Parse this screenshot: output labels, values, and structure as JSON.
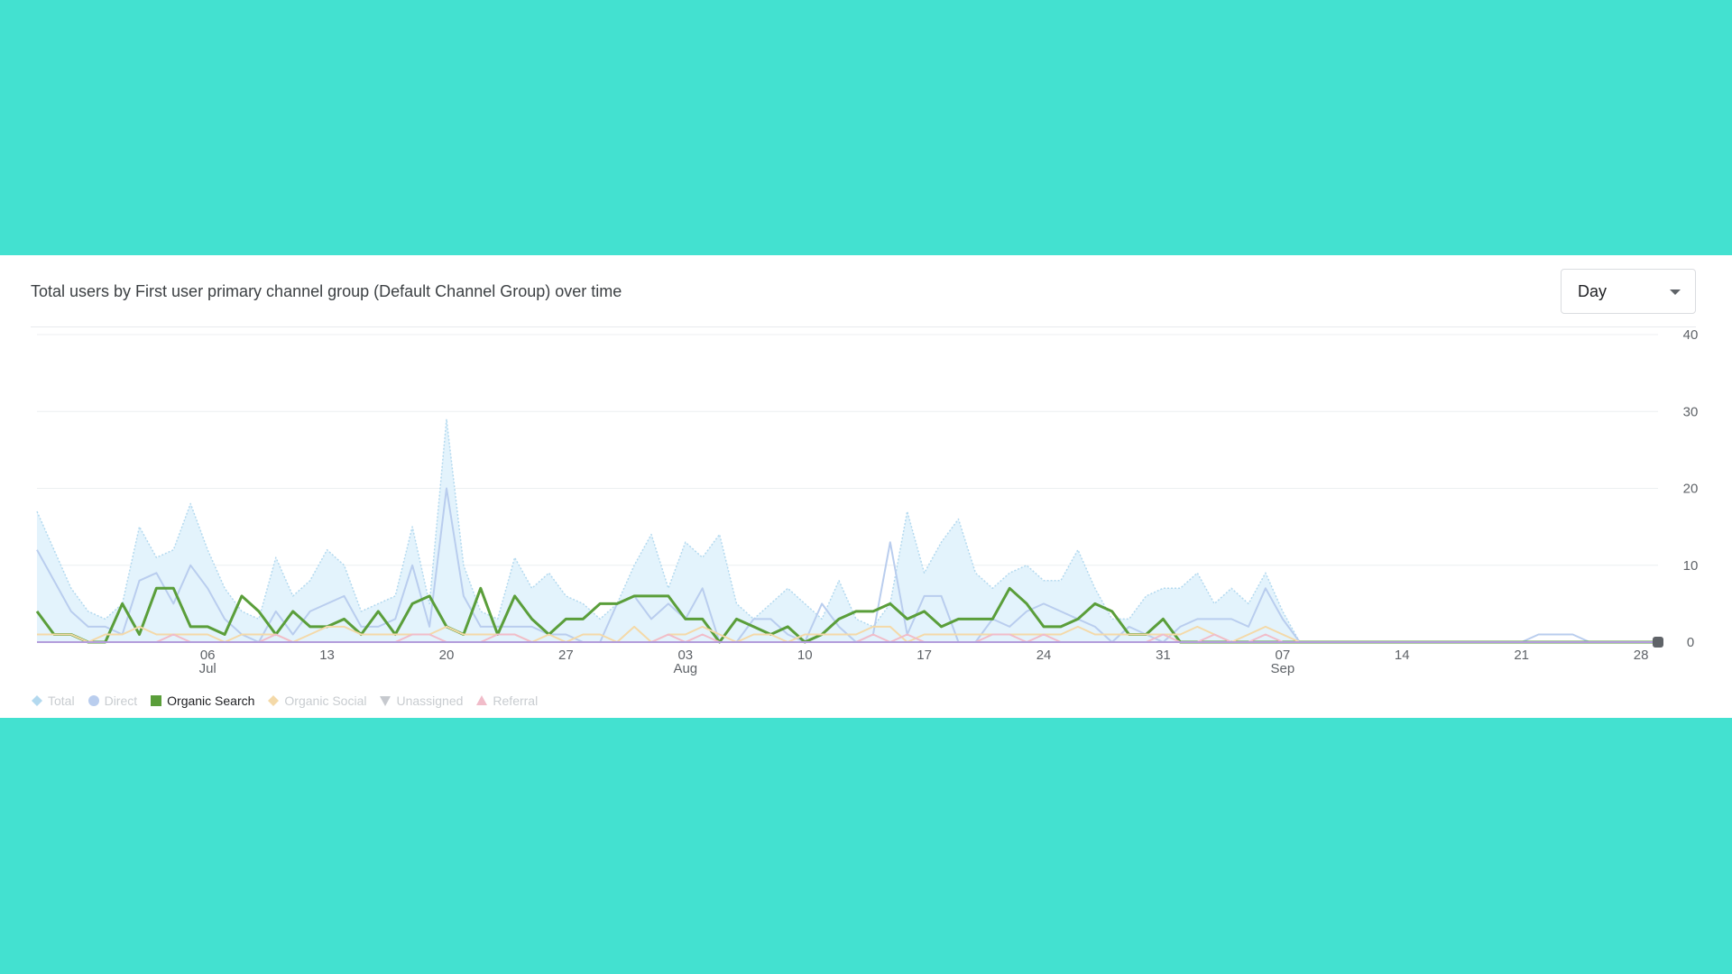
{
  "card": {
    "title": "Total users by First user primary channel group (Default Channel Group) over time",
    "granularity": {
      "selected": "Day"
    }
  },
  "legend": [
    {
      "label": "Total",
      "color": "#b3d9ef",
      "shape": "diamond",
      "active": false
    },
    {
      "label": "Direct",
      "color": "#b9cdee",
      "shape": "circle",
      "active": false
    },
    {
      "label": "Organic Search",
      "color": "#5a9e3a",
      "shape": "square",
      "active": true
    },
    {
      "label": "Organic Social",
      "color": "#f4d9a8",
      "shape": "diamond",
      "active": false
    },
    {
      "label": "Unassigned",
      "color": "#c6c9ce",
      "shape": "triangle-down",
      "active": false
    },
    {
      "label": "Referral",
      "color": "#f1bcc9",
      "shape": "triangle-up",
      "active": false
    }
  ],
  "chart_data": {
    "type": "line",
    "x_start_day": 0,
    "y_axis_side": "right",
    "ylim": [
      0,
      40
    ],
    "y_ticks": [
      0,
      10,
      20,
      30,
      40
    ],
    "x_ticks": [
      {
        "day": 10,
        "label": "06",
        "sub": "Jul"
      },
      {
        "day": 17,
        "label": "13",
        "sub": ""
      },
      {
        "day": 24,
        "label": "20",
        "sub": ""
      },
      {
        "day": 31,
        "label": "27",
        "sub": ""
      },
      {
        "day": 38,
        "label": "03",
        "sub": "Aug"
      },
      {
        "day": 45,
        "label": "10",
        "sub": ""
      },
      {
        "day": 52,
        "label": "17",
        "sub": ""
      },
      {
        "day": 59,
        "label": "24",
        "sub": ""
      },
      {
        "day": 66,
        "label": "31",
        "sub": ""
      },
      {
        "day": 73,
        "label": "07",
        "sub": "Sep"
      },
      {
        "day": 80,
        "label": "14",
        "sub": ""
      },
      {
        "day": 87,
        "label": "21",
        "sub": ""
      },
      {
        "day": 94,
        "label": "28",
        "sub": ""
      }
    ],
    "series": [
      {
        "name": "Total",
        "color": "#b3d9ef",
        "fill": true,
        "dashed": true,
        "values": [
          17,
          12,
          7,
          4,
          3,
          5,
          15,
          11,
          12,
          18,
          12,
          7,
          4,
          3,
          11,
          6,
          8,
          12,
          10,
          4,
          5,
          6,
          15,
          5,
          29,
          10,
          4,
          3,
          11,
          7,
          9,
          6,
          5,
          3,
          5,
          10,
          14,
          7,
          13,
          11,
          14,
          5,
          3,
          5,
          7,
          5,
          3,
          8,
          3,
          2,
          5,
          17,
          9,
          13,
          16,
          9,
          7,
          9,
          10,
          8,
          8,
          12,
          7,
          3,
          3,
          6,
          7,
          7,
          9,
          5,
          7,
          5,
          9,
          4,
          0,
          0,
          0,
          0,
          0,
          0,
          0,
          0,
          0,
          0,
          0,
          0,
          0,
          0,
          0,
          0,
          0,
          0,
          0,
          0,
          0,
          0,
          0,
          0,
          0,
          0,
          0,
          0,
          0,
          0,
          0,
          0,
          0,
          0,
          0,
          0,
          0,
          0,
          0,
          0,
          0,
          0,
          0,
          0,
          0,
          0,
          0
        ]
      },
      {
        "name": "Direct",
        "color": "#b9cdee",
        "fill": false,
        "dashed": false,
        "values": [
          12,
          8,
          4,
          2,
          2,
          1,
          8,
          9,
          5,
          10,
          7,
          3,
          1,
          0,
          4,
          1,
          4,
          5,
          6,
          2,
          2,
          3,
          10,
          2,
          20,
          6,
          2,
          2,
          2,
          2,
          1,
          1,
          0,
          0,
          5,
          6,
          3,
          5,
          3,
          7,
          0,
          0,
          3,
          3,
          1,
          0,
          5,
          2,
          0,
          1,
          13,
          1,
          6,
          6,
          0,
          0,
          3,
          2,
          4,
          5,
          4,
          3,
          2,
          0,
          2,
          1,
          0,
          2,
          3,
          3,
          3,
          2,
          7,
          3,
          0,
          0,
          0,
          0,
          0,
          0,
          0,
          0,
          0,
          0,
          0,
          0,
          0,
          0,
          1,
          1,
          1,
          0,
          0,
          0,
          0,
          0,
          0,
          0,
          0,
          0,
          0,
          0,
          0,
          0,
          0,
          0,
          0,
          0,
          0,
          0,
          0,
          0,
          0,
          0,
          0,
          0,
          0,
          0,
          0,
          0,
          0
        ]
      },
      {
        "name": "Organic Search",
        "color": "#5a9e3a",
        "fill": false,
        "dashed": false,
        "values": [
          4,
          1,
          1,
          0,
          0,
          5,
          1,
          7,
          7,
          2,
          2,
          1,
          6,
          4,
          1,
          4,
          2,
          2,
          3,
          1,
          4,
          1,
          5,
          6,
          2,
          1,
          7,
          1,
          6,
          3,
          1,
          3,
          3,
          5,
          5,
          6,
          6,
          6,
          3,
          3,
          0,
          3,
          2,
          1,
          2,
          0,
          1,
          3,
          4,
          4,
          5,
          3,
          4,
          2,
          3,
          3,
          3,
          7,
          5,
          2,
          2,
          3,
          5,
          4,
          1,
          1,
          3,
          0,
          0,
          0,
          0,
          0,
          0,
          0,
          0,
          0,
          0,
          0,
          0,
          0,
          0,
          0,
          0,
          0,
          0,
          0,
          0,
          0,
          0,
          0,
          0,
          0,
          0,
          0,
          0,
          0,
          0,
          0,
          0,
          0,
          0,
          0,
          0,
          0,
          0,
          0,
          0,
          0,
          0,
          0,
          0,
          0,
          0,
          0,
          0,
          0,
          0,
          0,
          0,
          0,
          0
        ]
      },
      {
        "name": "Organic Social",
        "color": "#f4d9a8",
        "fill": false,
        "dashed": false,
        "values": [
          1,
          1,
          1,
          0,
          1,
          1,
          2,
          1,
          1,
          1,
          1,
          0,
          1,
          1,
          1,
          0,
          1,
          2,
          2,
          1,
          1,
          1,
          1,
          1,
          2,
          1,
          1,
          1,
          1,
          0,
          1,
          0,
          1,
          1,
          0,
          2,
          0,
          1,
          1,
          2,
          1,
          0,
          1,
          1,
          0,
          1,
          1,
          1,
          1,
          2,
          2,
          0,
          1,
          1,
          1,
          1,
          1,
          1,
          1,
          1,
          1,
          2,
          1,
          1,
          1,
          1,
          1,
          1,
          2,
          1,
          0,
          1,
          2,
          1,
          0,
          0,
          0,
          0,
          0,
          0,
          0,
          0,
          0,
          0,
          0,
          0,
          0,
          0,
          0,
          0,
          0,
          0,
          0,
          0,
          0,
          0,
          0,
          0,
          0,
          0,
          0,
          0,
          0,
          0,
          0,
          0,
          0,
          0,
          0,
          0,
          0,
          0,
          0,
          0,
          0,
          0,
          0,
          0,
          0,
          0,
          0
        ]
      },
      {
        "name": "Referral",
        "color": "#f1bcc9",
        "fill": false,
        "dashed": false,
        "values": [
          0,
          0,
          0,
          0,
          0,
          0,
          0,
          0,
          1,
          0,
          0,
          0,
          0,
          0,
          1,
          0,
          0,
          0,
          0,
          0,
          0,
          0,
          1,
          1,
          0,
          0,
          0,
          1,
          1,
          0,
          0,
          0,
          0,
          0,
          0,
          0,
          0,
          1,
          0,
          1,
          0,
          0,
          0,
          0,
          0,
          0,
          0,
          0,
          0,
          1,
          0,
          1,
          0,
          0,
          0,
          0,
          1,
          1,
          0,
          1,
          0,
          0,
          0,
          0,
          0,
          0,
          1,
          0,
          0,
          1,
          0,
          0,
          1,
          0,
          0,
          0,
          0,
          0,
          0,
          0,
          0,
          0,
          0,
          0,
          0,
          0,
          0,
          0,
          0,
          0,
          0,
          0,
          0,
          0,
          0,
          0,
          0,
          0,
          0,
          0,
          0,
          0,
          0,
          0,
          0,
          0,
          0,
          0,
          0,
          0,
          0,
          0,
          0,
          0,
          0,
          0,
          0,
          0,
          0,
          0,
          0
        ]
      },
      {
        "name": "Unassigned",
        "color": "#b39ddb",
        "fill": false,
        "dashed": false,
        "values": [
          0,
          0,
          0,
          0,
          0,
          0,
          0,
          0,
          0,
          0,
          0,
          0,
          0,
          0,
          0,
          0,
          0,
          0,
          0,
          0,
          0,
          0,
          0,
          0,
          0,
          0,
          0,
          0,
          0,
          0,
          0,
          0,
          0,
          0,
          0,
          0,
          0,
          0,
          0,
          0,
          0,
          0,
          0,
          0,
          0,
          0,
          0,
          0,
          0,
          0,
          0,
          0,
          0,
          0,
          0,
          0,
          0,
          0,
          0,
          0,
          0,
          0,
          0,
          0,
          0,
          0,
          0,
          0,
          0,
          0,
          0,
          0,
          0,
          0,
          0,
          0,
          0,
          0,
          0,
          0,
          0,
          0,
          0,
          0,
          0,
          0,
          0,
          0,
          0,
          0,
          0,
          0,
          0,
          0,
          0,
          0,
          0,
          0,
          0,
          0,
          0,
          0,
          0,
          0,
          0,
          0,
          0,
          0,
          0,
          0,
          0,
          0,
          0,
          0,
          0,
          0,
          0,
          0,
          0,
          0,
          0
        ]
      }
    ],
    "end_marker_day": 95
  }
}
